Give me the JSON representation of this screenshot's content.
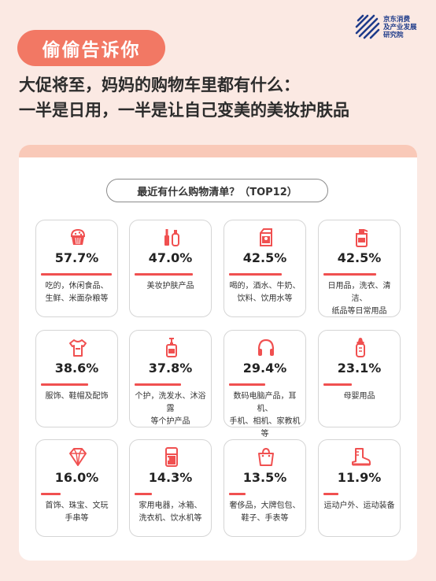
{
  "brand": {
    "lines": [
      "京东消费",
      "及产业发展",
      "研究院"
    ],
    "color": "#1e3b8a"
  },
  "tag": "偷偷告诉你",
  "headline": [
    "大促将至，妈妈的购物车里都有什么：",
    "一半是日用，一半是让自己变美的美妆护肤品"
  ],
  "colors": {
    "accent": "#f27864",
    "bar": "#f05050",
    "icon": "#f05050",
    "background": "#fbe9e3",
    "band": "#f9c9b8"
  },
  "chart_data": {
    "type": "bar",
    "title": "最近有什么购物清单？（TOP12）",
    "unit": "%",
    "categories": [
      "吃的，休闲食品、生鲜、米面杂粮等",
      "美妆护肤产品",
      "喝的，酒水、牛奶、饮料、饮用水等",
      "日用品，洗衣、清洁、纸品等日常用品",
      "服饰、鞋帽及配饰",
      "个护，洗发水、沐浴露等个护产品",
      "数码电脑产品，耳机、手机、相机、家教机等",
      "母婴用品",
      "首饰、珠宝、文玩手串等",
      "家用电器，冰箱、洗衣机、饮水机等",
      "奢侈品，大牌包包、鞋子、手表等",
      "运动户外、运动装备"
    ],
    "values": [
      57.7,
      47.0,
      42.5,
      42.5,
      38.6,
      37.8,
      29.4,
      23.1,
      16.0,
      14.3,
      13.5,
      11.9
    ],
    "labels": [
      "57.7%",
      "47.0%",
      "42.5%",
      "42.5%",
      "38.6%",
      "37.8%",
      "29.4%",
      "23.1%",
      "16.0%",
      "14.3%",
      "13.5%",
      "11.9%"
    ],
    "desc_lines": [
      [
        "吃的，休闲食品、",
        "生鲜、米面杂粮等"
      ],
      [
        "美妆护肤产品"
      ],
      [
        "喝的，酒水、牛奶、",
        "饮料、饮用水等"
      ],
      [
        "日用品，洗衣、清洁、",
        "纸品等日常用品"
      ],
      [
        "服饰、鞋帽及配饰"
      ],
      [
        "个护，洗发水、沐浴露",
        "等个护产品"
      ],
      [
        "数码电脑产品，耳机、",
        "手机、相机、家教机等"
      ],
      [
        "母婴用品"
      ],
      [
        "首饰、珠宝、文玩",
        "手串等"
      ],
      [
        "家用电器，冰箱、",
        "洗衣机、饮水机等"
      ],
      [
        "奢侈品，大牌包包、",
        "鞋子、手表等"
      ],
      [
        "运动户外、运动装备"
      ]
    ],
    "icons": [
      "cupcake-icon",
      "cosmetics-icon",
      "milk-carton-icon",
      "detergent-bottle-icon",
      "tshirt-icon",
      "pump-bottle-icon",
      "headphones-icon",
      "baby-bottle-icon",
      "diamond-icon",
      "refrigerator-icon",
      "handbag-icon",
      "boot-icon"
    ]
  }
}
